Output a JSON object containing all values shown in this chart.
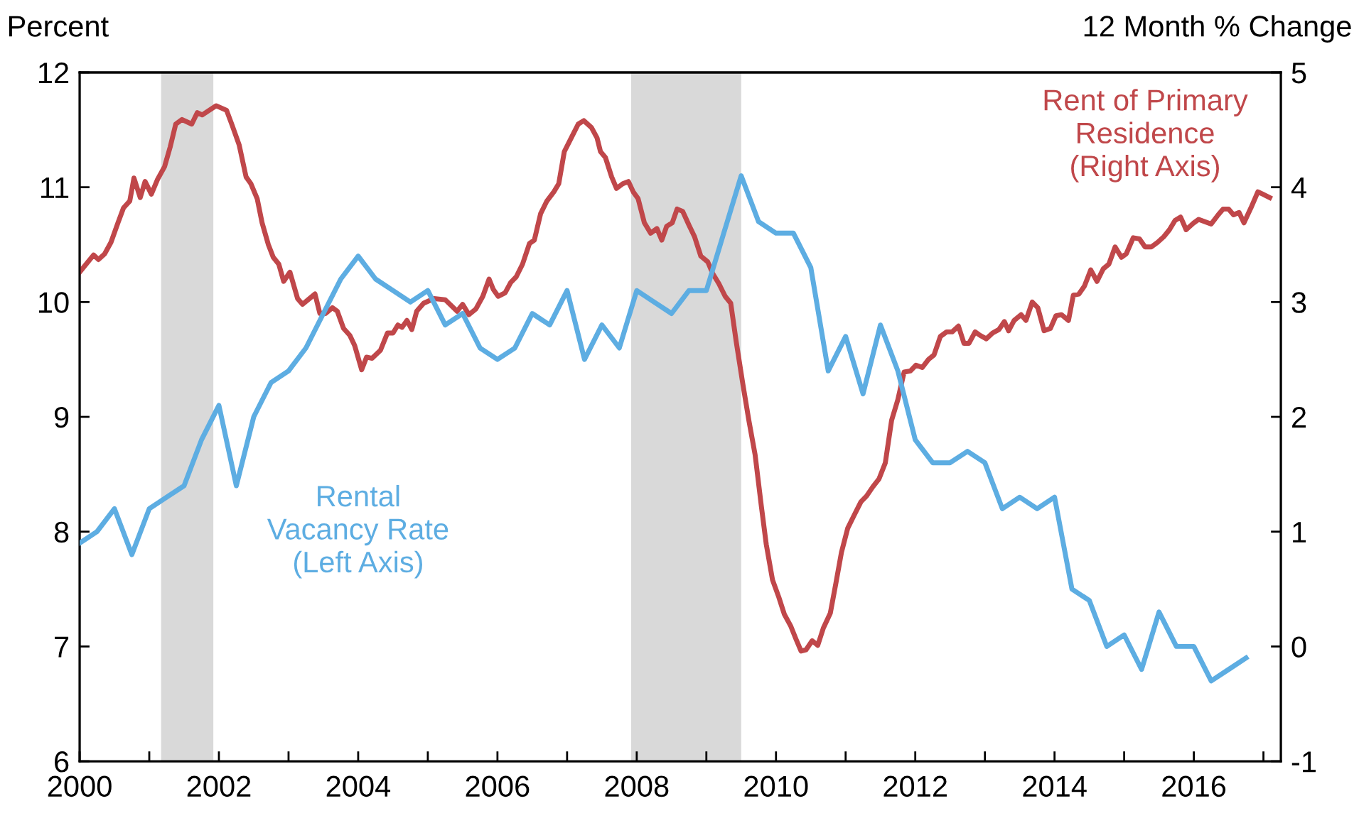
{
  "chart_data": {
    "type": "line",
    "ylabel": "Percent",
    "y2label": "12 Month % Change",
    "xlim": [
      2000,
      2017.25
    ],
    "xticks": [
      2000,
      {
        "value": 2001,
        "label": null
      },
      2002,
      {
        "value": 2003,
        "label": null
      },
      2004,
      {
        "value": 2005,
        "label": null
      },
      2006,
      {
        "value": 2007,
        "label": null
      },
      2008,
      {
        "value": 2009,
        "label": null
      },
      2010,
      {
        "value": 2011,
        "label": null
      },
      2012,
      {
        "value": 2013,
        "label": null
      },
      2014,
      {
        "value": 2015,
        "label": null
      },
      2016,
      {
        "value": 2017,
        "label": null
      }
    ],
    "ylim": [
      6,
      12
    ],
    "yticks": [
      6,
      7,
      8,
      9,
      10,
      11,
      12
    ],
    "y2lim": [
      -1,
      5
    ],
    "y2ticks": [
      -1,
      0,
      1,
      2,
      3,
      4,
      5
    ],
    "grid": false,
    "legend": false,
    "marker": "none",
    "line_style": "solid",
    "bands": [
      {
        "axis": "x",
        "from": 2001.17,
        "to": 2001.92,
        "color": "#d9d9d9"
      },
      {
        "axis": "x",
        "from": 2007.92,
        "to": 2009.5,
        "color": "#d9d9d9"
      }
    ],
    "series": [
      {
        "name": "Rental\nVacancy Rate\n(Left Axis)",
        "color": "#5dade2",
        "axis": "y",
        "x": [
          2000.0,
          2000.25,
          2000.5,
          2000.75,
          2001.0,
          2001.25,
          2001.5,
          2001.75,
          2002.0,
          2002.25,
          2002.5,
          2002.75,
          2003.0,
          2003.25,
          2003.5,
          2003.75,
          2004.0,
          2004.25,
          2004.5,
          2004.75,
          2005.0,
          2005.25,
          2005.5,
          2005.75,
          2006.0,
          2006.25,
          2006.5,
          2006.75,
          2007.0,
          2007.25,
          2007.5,
          2007.75,
          2008.0,
          2008.25,
          2008.5,
          2008.75,
          2009.0,
          2009.25,
          2009.5,
          2009.75,
          2010.0,
          2010.25,
          2010.5,
          2010.75,
          2011.0,
          2011.25,
          2011.5,
          2011.75,
          2012.0,
          2012.25,
          2012.5,
          2012.75,
          2013.0,
          2013.25,
          2013.5,
          2013.75,
          2014.0,
          2014.25,
          2014.5,
          2014.75,
          2015.0,
          2015.25,
          2015.5,
          2015.75,
          2016.0,
          2016.25,
          2016.5,
          2016.75
        ],
        "values": [
          7.9,
          8.0,
          8.2,
          7.8,
          8.2,
          8.3,
          8.4,
          8.8,
          9.1,
          8.4,
          9.0,
          9.3,
          9.4,
          9.6,
          9.9,
          10.2,
          10.4,
          10.2,
          10.1,
          10.0,
          10.1,
          9.8,
          9.9,
          9.6,
          9.5,
          9.6,
          9.9,
          9.8,
          10.1,
          9.5,
          9.8,
          9.6,
          10.1,
          10.0,
          9.9,
          10.1,
          10.1,
          10.6,
          11.1,
          10.7,
          10.6,
          10.6,
          10.3,
          9.4,
          9.7,
          9.2,
          9.8,
          9.4,
          8.8,
          8.6,
          8.6,
          8.7,
          8.6,
          8.2,
          8.3,
          8.2,
          8.3,
          7.5,
          7.4,
          7.0,
          7.1,
          6.8,
          7.3,
          7.0,
          7.0,
          6.7,
          6.8,
          6.9
        ]
      },
      {
        "name": "Rent of Primary\nResidence\n(Right Axis)",
        "color": "#c0474a",
        "axis": "y2",
        "x": [
          2000.0,
          2000.2,
          2000.27,
          2000.36,
          2000.45,
          2000.55,
          2000.63,
          2000.72,
          2000.78,
          2000.87,
          2000.94,
          2001.03,
          2001.12,
          2001.22,
          2001.3,
          2001.38,
          2001.47,
          2001.61,
          2001.69,
          2001.76,
          2001.96,
          2002.11,
          2002.19,
          2002.29,
          2002.39,
          2002.46,
          2002.55,
          2002.62,
          2002.71,
          2002.78,
          2002.86,
          2002.93,
          2003.02,
          2003.13,
          2003.2,
          2003.3,
          2003.38,
          2003.45,
          2003.53,
          2003.63,
          2003.7,
          2003.79,
          2003.88,
          2003.95,
          2004.05,
          2004.12,
          2004.2,
          2004.32,
          2004.42,
          2004.5,
          2004.57,
          2004.63,
          2004.7,
          2004.77,
          2004.84,
          2004.94,
          2005.09,
          2005.25,
          2005.42,
          2005.5,
          2005.59,
          2005.69,
          2005.79,
          2005.88,
          2005.94,
          2006.01,
          2006.11,
          2006.19,
          2006.27,
          2006.36,
          2006.46,
          2006.53,
          2006.62,
          2006.71,
          2006.81,
          2006.88,
          2006.96,
          2007.06,
          2007.16,
          2007.24,
          2007.35,
          2007.43,
          2007.48,
          2007.55,
          2007.64,
          2007.71,
          2007.8,
          2007.88,
          2007.95,
          2008.02,
          2008.11,
          2008.2,
          2008.29,
          2008.36,
          2008.43,
          2008.51,
          2008.58,
          2008.66,
          2008.75,
          2008.83,
          2008.92,
          2009.02,
          2009.09,
          2009.18,
          2009.27,
          2009.35,
          2009.43,
          2009.52,
          2009.61,
          2009.7,
          2009.79,
          2009.86,
          2009.95,
          2010.04,
          2010.12,
          2010.21,
          2010.29,
          2010.36,
          2010.43,
          2010.52,
          2010.6,
          2010.68,
          2010.78,
          2010.86,
          2010.94,
          2011.03,
          2011.12,
          2011.22,
          2011.3,
          2011.39,
          2011.48,
          2011.57,
          2011.66,
          2011.75,
          2011.84,
          2011.93,
          2012.01,
          2012.1,
          2012.19,
          2012.27,
          2012.36,
          2012.45,
          2012.53,
          2012.62,
          2012.7,
          2012.77,
          2012.86,
          2012.93,
          2013.02,
          2013.11,
          2013.2,
          2013.28,
          2013.34,
          2013.42,
          2013.52,
          2013.59,
          2013.68,
          2013.76,
          2013.85,
          2013.94,
          2014.02,
          2014.1,
          2014.2,
          2014.27,
          2014.35,
          2014.43,
          2014.52,
          2014.61,
          2014.7,
          2014.78,
          2014.87,
          2014.96,
          2015.03,
          2015.13,
          2015.22,
          2015.3,
          2015.39,
          2015.48,
          2015.57,
          2015.65,
          2015.73,
          2015.81,
          2015.89,
          2016.0,
          2016.07,
          2016.16,
          2016.25,
          2016.35,
          2016.42,
          2016.5,
          2016.57,
          2016.65,
          2016.72,
          2016.82,
          2016.92,
          2016.99,
          2017.09
        ],
        "values": [
          3.26,
          3.41,
          3.37,
          3.42,
          3.52,
          3.69,
          3.82,
          3.88,
          4.08,
          3.91,
          4.05,
          3.94,
          4.07,
          4.18,
          4.35,
          4.55,
          4.59,
          4.55,
          4.65,
          4.63,
          4.71,
          4.67,
          4.54,
          4.37,
          4.09,
          4.03,
          3.9,
          3.69,
          3.5,
          3.39,
          3.33,
          3.18,
          3.26,
          3.03,
          2.98,
          3.03,
          3.07,
          2.9,
          2.9,
          2.95,
          2.92,
          2.77,
          2.71,
          2.62,
          2.41,
          2.52,
          2.51,
          2.58,
          2.73,
          2.73,
          2.8,
          2.78,
          2.84,
          2.76,
          2.92,
          2.99,
          3.03,
          3.02,
          2.92,
          2.98,
          2.89,
          2.94,
          3.05,
          3.2,
          3.11,
          3.05,
          3.08,
          3.17,
          3.22,
          3.33,
          3.51,
          3.54,
          3.77,
          3.88,
          3.96,
          4.03,
          4.31,
          4.43,
          4.55,
          4.58,
          4.52,
          4.43,
          4.31,
          4.26,
          4.09,
          3.99,
          4.03,
          4.05,
          3.96,
          3.9,
          3.69,
          3.6,
          3.64,
          3.54,
          3.66,
          3.69,
          3.81,
          3.79,
          3.67,
          3.57,
          3.4,
          3.35,
          3.25,
          3.16,
          3.05,
          2.99,
          2.65,
          2.3,
          1.97,
          1.67,
          1.22,
          0.89,
          0.58,
          0.43,
          0.28,
          0.18,
          0.06,
          -0.04,
          -0.03,
          0.05,
          0.01,
          0.16,
          0.29,
          0.55,
          0.82,
          1.03,
          1.14,
          1.26,
          1.31,
          1.39,
          1.46,
          1.6,
          1.97,
          2.15,
          2.39,
          2.4,
          2.45,
          2.43,
          2.5,
          2.54,
          2.7,
          2.74,
          2.74,
          2.79,
          2.64,
          2.64,
          2.74,
          2.71,
          2.68,
          2.73,
          2.76,
          2.83,
          2.75,
          2.84,
          2.89,
          2.84,
          3.0,
          2.95,
          2.75,
          2.77,
          2.88,
          2.89,
          2.84,
          3.06,
          3.07,
          3.14,
          3.28,
          3.18,
          3.29,
          3.33,
          3.48,
          3.39,
          3.42,
          3.56,
          3.55,
          3.48,
          3.48,
          3.52,
          3.57,
          3.63,
          3.71,
          3.74,
          3.63,
          3.69,
          3.72,
          3.7,
          3.68,
          3.76,
          3.81,
          3.81,
          3.76,
          3.78,
          3.69,
          3.82,
          3.96,
          3.94,
          3.91
        ]
      }
    ]
  }
}
